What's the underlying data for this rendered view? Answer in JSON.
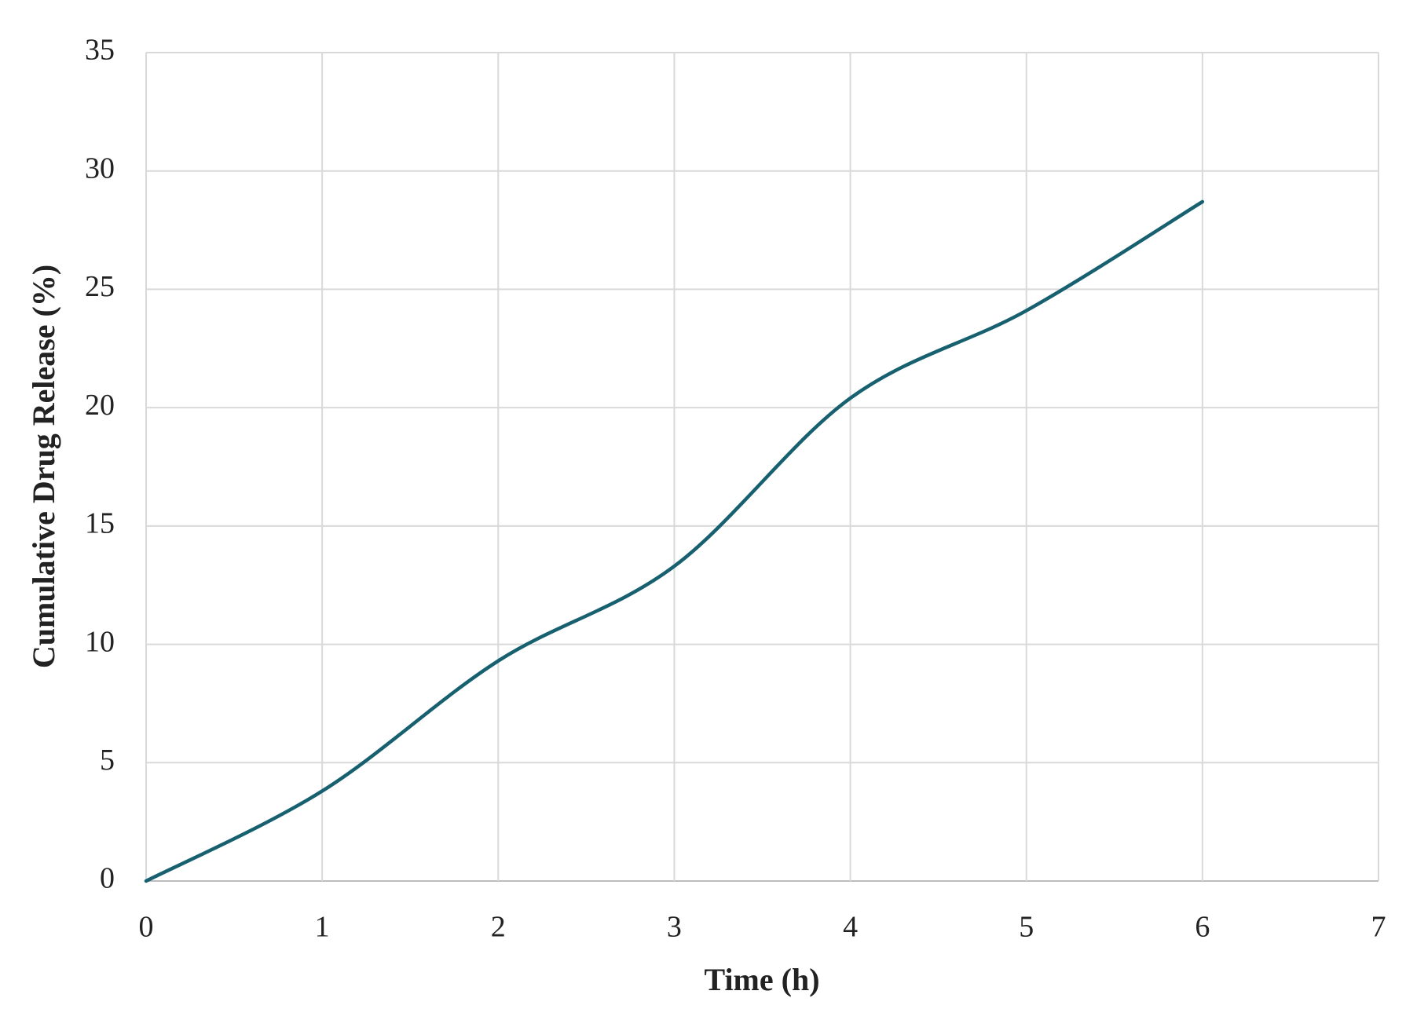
{
  "chart_data": {
    "type": "line",
    "x_label": "Time (h)",
    "y_label": "Cumulative Drug Release (%)",
    "x": [
      0,
      1,
      2,
      3,
      4,
      5,
      6
    ],
    "series": [
      {
        "name": "Cumulative Drug Release",
        "color": "#17606f",
        "values": [
          0,
          3.8,
          9.3,
          13.3,
          20.4,
          24.1,
          28.7
        ]
      }
    ],
    "xlim": [
      0,
      7
    ],
    "xticks": [
      0,
      1,
      2,
      3,
      4,
      5,
      6,
      7
    ],
    "ylim": [
      0,
      35
    ],
    "yticks": [
      0,
      5,
      10,
      15,
      20,
      25,
      30,
      35
    ],
    "grid": true,
    "smooth": true
  }
}
